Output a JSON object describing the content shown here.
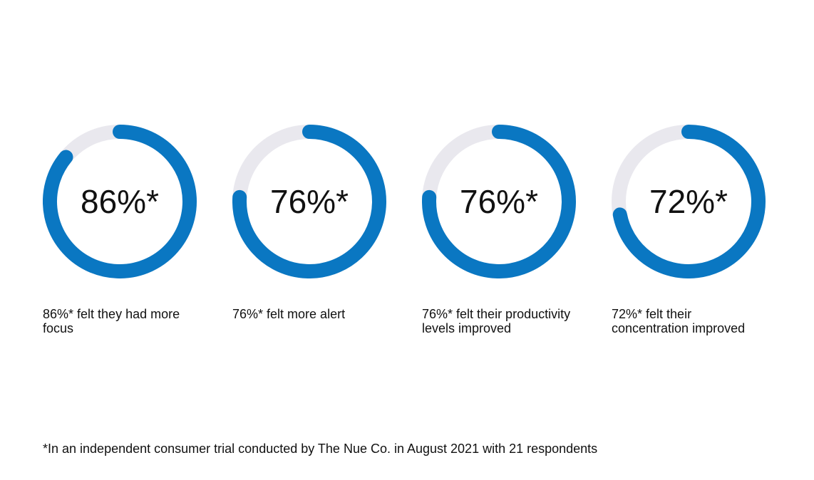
{
  "colors": {
    "progress": "#0a77c2",
    "track": "#e9e8ee",
    "text": "#111111"
  },
  "chart_data": {
    "type": "donut",
    "unit": "%",
    "items": [
      {
        "value": 86,
        "display": "86%*",
        "caption": "86%* felt they had more focus"
      },
      {
        "value": 76,
        "display": "76%*",
        "caption": "76%* felt more alert"
      },
      {
        "value": 76,
        "display": "76%*",
        "caption": "76%* felt their productivity levels improved"
      },
      {
        "value": 72,
        "display": "72%*",
        "caption": "72%* felt their concentration improved"
      }
    ]
  },
  "footnote": "*In an independent consumer trial conducted by The Nue Co. in August 2021 with 21 respondents"
}
